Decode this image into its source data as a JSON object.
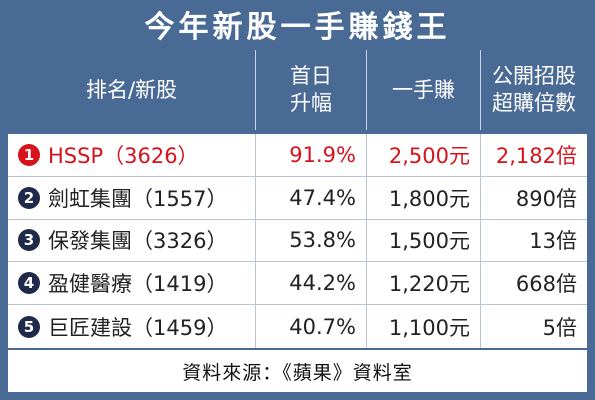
{
  "title": "今年新股一手賺錢王",
  "headers": {
    "rank_name": "排名/新股",
    "first_day_line1": "首日",
    "first_day_line2": "升幅",
    "lot_profit": "一手賺",
    "oversub_line1": "公開招股",
    "oversub_line2": "超購倍數"
  },
  "rows": [
    {
      "rank": "1",
      "name": "HSSP（3626）",
      "rise": "91.9%",
      "profit": "2,500元",
      "oversub": "2,182倍"
    },
    {
      "rank": "2",
      "name": "劍虹集團（1557）",
      "rise": "47.4%",
      "profit": "1,800元",
      "oversub": "890倍"
    },
    {
      "rank": "3",
      "name": "保發集團（3326）",
      "rise": "53.8%",
      "profit": "1,500元",
      "oversub": "13倍"
    },
    {
      "rank": "4",
      "name": "盈健醫療（1419）",
      "rise": "44.2%",
      "profit": "1,220元",
      "oversub": "668倍"
    },
    {
      "rank": "5",
      "name": "巨匠建設（1459）",
      "rise": "40.7%",
      "profit": "1,100元",
      "oversub": "5倍"
    }
  ],
  "source": "資料來源：《蘋果》資料室",
  "colors": {
    "frame": "#4a6a96",
    "highlight": "#d8121b",
    "badge": "#1f2a4a"
  }
}
